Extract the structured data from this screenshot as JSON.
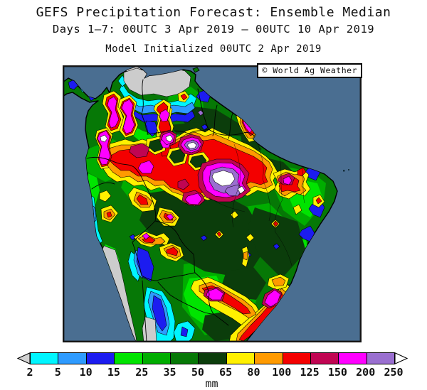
{
  "header": {
    "title": "GEFS Precipitation Forecast: Ensemble Median",
    "period_line": "Days 1–7: 00UTC 3 Apr 2019 — 00UTC 10 Apr 2019",
    "init_line": "Model Initialized 00UTC 2 Apr 2019"
  },
  "map": {
    "copyright": "© World Ag Weather",
    "region": "South America",
    "kind": "7-day precipitation contour map"
  },
  "legend": {
    "unit": "mm",
    "tick_labels": [
      "2",
      "5",
      "10",
      "15",
      "25",
      "35",
      "50",
      "65",
      "80",
      "100",
      "125",
      "150",
      "200",
      "250"
    ],
    "segment_colors": [
      "#00f5ff",
      "#2e9bff",
      "#1c1cf0",
      "#00e400",
      "#00ad00",
      "#067806",
      "#0b3d0b",
      "#fff000",
      "#ff9a00",
      "#f40000",
      "#c00552",
      "#ff00ff",
      "#9a6fd0"
    ],
    "below_min_color": "#d2d2d2",
    "above_max_color": "#ffffff"
  },
  "palette": {
    "ocean": "#4a6e91",
    "dry": "#cccccc",
    "c2": "#00f5ff",
    "c5": "#2e9bff",
    "c10": "#1c1cf0",
    "c15": "#00e400",
    "c25": "#00ad00",
    "c35": "#067806",
    "c50": "#0b3d0b",
    "c65": "#fff000",
    "c80": "#ff9a00",
    "c100": "#f40000",
    "c125": "#c00552",
    "c150": "#ff00ff",
    "c200": "#9a6fd0",
    "c250": "#ffffff"
  }
}
